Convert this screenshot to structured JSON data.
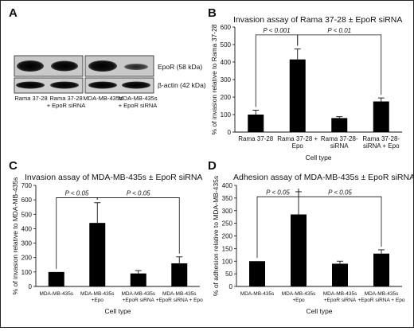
{
  "panels": {
    "a": {
      "letter": "A",
      "blot_labels": [
        "EpoR (58 kDa)",
        "β-actin (42 kDa)"
      ],
      "lanes": [
        {
          "line1": "Rama 37-28",
          "line2": ""
        },
        {
          "line1": "Rama 37-28",
          "line2": "+ EpoR siRNA"
        },
        {
          "line1": "MDA-MB-435s",
          "line2": ""
        },
        {
          "line1": "MDA-MB-435s",
          "line2": "+ EpoR siRNA"
        }
      ]
    },
    "b": {
      "letter": "B"
    },
    "c": {
      "letter": "C"
    },
    "d": {
      "letter": "D"
    }
  },
  "chart_data": [
    {
      "id": "b",
      "type": "bar",
      "title": "Invasion assay of Rama 37-28 ± EpoR siRNA",
      "xlabel": "Cell type",
      "ylabel": "% of invasion relative to Rama 37-28",
      "ylim": [
        0,
        600
      ],
      "yticks": [
        0,
        100,
        200,
        300,
        400,
        500,
        600
      ],
      "categories": [
        [
          "Rama 37-28"
        ],
        [
          "Rama 37-28 +",
          "Epo"
        ],
        [
          "Rama 37-28-",
          "siRNA"
        ],
        [
          "Rama 37-28-",
          "siRNA + Epo"
        ]
      ],
      "values": [
        100,
        415,
        80,
        175
      ],
      "errors": [
        25,
        60,
        8,
        20
      ],
      "brackets": [
        {
          "from": 0,
          "to": 1,
          "label": "P < 0.001",
          "y": 555
        },
        {
          "from": 1,
          "to": 3,
          "label": "P < 0.01",
          "y": 555
        }
      ]
    },
    {
      "id": "c",
      "type": "bar",
      "title": "Invasion assay of MDA-MB-435s ± EpoR siRNA",
      "xlabel": "Cell type",
      "ylabel": "% of invasion relative to MDA-MB-435s",
      "ylim": [
        0,
        700
      ],
      "yticks": [
        0,
        100,
        200,
        300,
        400,
        500,
        600,
        700
      ],
      "categories": [
        [
          "MDA-MB-435s"
        ],
        [
          "MDA-MB-435s",
          "+Epo"
        ],
        [
          "MDA-MB-435s",
          "+EpoR siRNA"
        ],
        [
          "MDA-MB-435s",
          "+EpoR siRNA + Epo"
        ]
      ],
      "values": [
        100,
        440,
        90,
        160
      ],
      "errors": [
        0,
        140,
        20,
        45
      ],
      "brackets": [
        {
          "from": 0,
          "to": 1,
          "label": "P < 0.05",
          "y": 615
        },
        {
          "from": 1,
          "to": 3,
          "label": "P < 0.05",
          "y": 615
        }
      ]
    },
    {
      "id": "d",
      "type": "bar",
      "title": "Adhesion assay of MDA-MB-435s ± EpoR siRNA",
      "xlabel": "Cell type",
      "ylabel": "% of adhesion relative to MDA-MB-435s",
      "ylim": [
        0,
        400
      ],
      "yticks": [
        0,
        50,
        100,
        150,
        200,
        250,
        300,
        350,
        400
      ],
      "categories": [
        [
          "MDA-MB-435s"
        ],
        [
          "MDA-MB-435s",
          "+Epo"
        ],
        [
          "MDA-MB-435s",
          "+EpoR siRNA"
        ],
        [
          "MDA-MB-435s",
          "+EpoR siRNA + Epo"
        ]
      ],
      "values": [
        100,
        285,
        90,
        130
      ],
      "errors": [
        0,
        90,
        10,
        15
      ],
      "brackets": [
        {
          "from": 0,
          "to": 1,
          "label": "P < 0.05",
          "y": 355
        },
        {
          "from": 1,
          "to": 3,
          "label": "P < 0.05",
          "y": 355
        }
      ]
    }
  ]
}
